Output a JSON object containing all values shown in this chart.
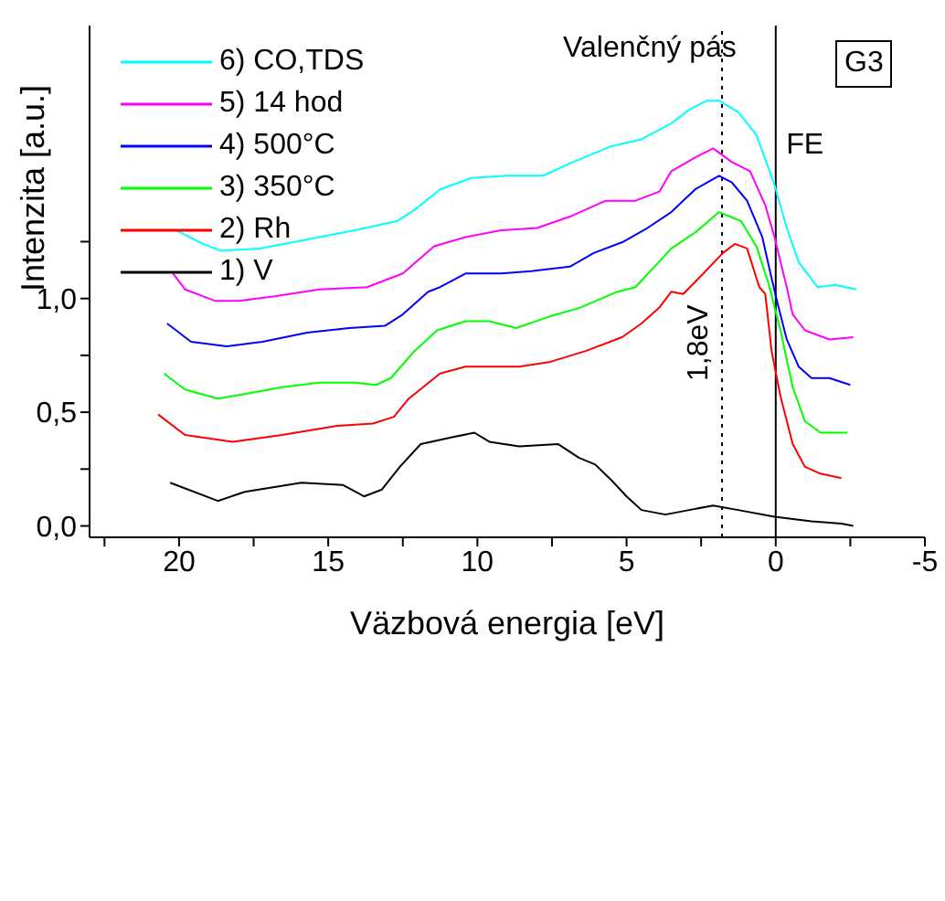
{
  "chart_data": {
    "type": "line",
    "xlabel": "Väzbová energia [eV]",
    "ylabel": "Intenzita [a.u.]",
    "xlim": [
      23,
      -5
    ],
    "xticks": [
      {
        "value": 22.5,
        "label": null
      },
      20,
      {
        "value": 17.5,
        "label": null
      },
      15,
      {
        "value": 12.5,
        "label": null
      },
      10,
      {
        "value": 7.5,
        "label": null
      },
      5,
      {
        "value": 2.5,
        "label": null
      },
      0,
      {
        "value": -2.5,
        "label": null
      },
      -5
    ],
    "ylim": [
      -0.05,
      2.2
    ],
    "yticks": [
      {
        "value": 0,
        "label": "0,0"
      },
      {
        "value": 0.25,
        "label": null
      },
      {
        "value": 0.5,
        "label": "0,5"
      },
      {
        "value": 0.75,
        "label": null
      },
      {
        "value": 1,
        "label": "1,0"
      },
      {
        "value": 1.25,
        "label": null
      }
    ],
    "legend": "top left",
    "marker": "none",
    "line_style": "solid",
    "annotations": [
      "Valenčný pás",
      "G3"
    ],
    "ref_lines": [
      {
        "axis": "x",
        "value": 1.8,
        "label": "1,8eV",
        "line_style": "dotted",
        "color": "#000000"
      },
      {
        "axis": "x",
        "value": 0,
        "label": "FE",
        "line_style": "solid",
        "color": "#000000"
      }
    ],
    "series": [
      {
        "name": "1) V",
        "color": "#000000",
        "x": [
          20.3,
          18.7,
          17.8,
          15.9,
          14.5,
          13.8,
          13.2,
          12.6,
          11.9,
          10.85,
          10.1,
          9.6,
          8.6,
          7.3,
          6.6,
          6.05,
          5.5,
          5.0,
          4.5,
          3.7,
          2.9,
          2.1,
          1.26,
          0.04,
          -1.2,
          -2.2,
          -2.6
        ],
        "values": [
          0.19,
          0.11,
          0.15,
          0.19,
          0.18,
          0.13,
          0.16,
          0.26,
          0.36,
          0.39,
          0.41,
          0.37,
          0.35,
          0.36,
          0.3,
          0.27,
          0.2,
          0.13,
          0.07,
          0.05,
          0.07,
          0.09,
          0.07,
          0.04,
          0.02,
          0.01,
          0.0
        ]
      },
      {
        "name": "2) Rh",
        "color": "#ff0000",
        "x": [
          20.7,
          19.8,
          18.2,
          16.55,
          14.7,
          13.5,
          12.8,
          12.3,
          11.25,
          10.4,
          8.6,
          7.6,
          6.35,
          5.15,
          4.5,
          3.9,
          3.5,
          3.1,
          2.5,
          1.77,
          1.37,
          0.96,
          0.55,
          0.35,
          0.14,
          -0.16,
          -0.57,
          -0.98,
          -1.5,
          -2.2
        ],
        "values": [
          0.49,
          0.4,
          0.37,
          0.4,
          0.44,
          0.45,
          0.48,
          0.56,
          0.67,
          0.7,
          0.7,
          0.72,
          0.77,
          0.83,
          0.89,
          0.96,
          1.03,
          1.02,
          1.1,
          1.2,
          1.24,
          1.22,
          1.05,
          1.02,
          0.77,
          0.57,
          0.36,
          0.26,
          0.23,
          0.21
        ]
      },
      {
        "name": "3) 350°C",
        "color": "#00ff00",
        "x": [
          20.5,
          19.8,
          18.7,
          17.8,
          16.55,
          15.3,
          14.1,
          13.4,
          12.9,
          12.1,
          11.35,
          10.4,
          9.6,
          8.7,
          7.6,
          6.55,
          5.3,
          4.7,
          3.5,
          2.7,
          1.9,
          1.16,
          0.65,
          0.25,
          -0.16,
          -0.57,
          -0.98,
          -1.5,
          -2.4
        ],
        "values": [
          0.67,
          0.6,
          0.56,
          0.58,
          0.61,
          0.63,
          0.63,
          0.62,
          0.65,
          0.77,
          0.86,
          0.9,
          0.9,
          0.87,
          0.92,
          0.96,
          1.03,
          1.05,
          1.22,
          1.29,
          1.38,
          1.34,
          1.23,
          1.07,
          0.86,
          0.61,
          0.46,
          0.41,
          0.41
        ]
      },
      {
        "name": "4) 500°C",
        "color": "#0000ff",
        "x": [
          20.4,
          19.6,
          18.4,
          17.2,
          15.7,
          14.3,
          13.1,
          12.5,
          11.65,
          11.25,
          10.4,
          9.2,
          8.2,
          6.9,
          6.1,
          5.1,
          4.3,
          3.5,
          2.7,
          1.9,
          1.47,
          0.96,
          0.45,
          0.14,
          -0.06,
          -0.37,
          -0.77,
          -1.2,
          -1.8,
          -2.5
        ],
        "values": [
          0.89,
          0.81,
          0.79,
          0.81,
          0.85,
          0.87,
          0.88,
          0.93,
          1.03,
          1.05,
          1.11,
          1.11,
          1.12,
          1.14,
          1.2,
          1.25,
          1.31,
          1.38,
          1.48,
          1.54,
          1.51,
          1.43,
          1.27,
          1.09,
          0.98,
          0.82,
          0.7,
          0.65,
          0.65,
          0.62
        ]
      },
      {
        "name": "5) 14 hod",
        "color": "#ff00ff",
        "x": [
          20.2,
          19.8,
          18.8,
          18.0,
          16.8,
          15.3,
          13.7,
          12.5,
          11.45,
          10.4,
          9.2,
          8.0,
          6.9,
          5.7,
          4.7,
          3.9,
          3.5,
          2.7,
          2.1,
          1.47,
          0.86,
          0.35,
          0.04,
          -0.37,
          -0.57,
          -0.98,
          -1.8,
          -2.6
        ],
        "values": [
          1.11,
          1.04,
          0.99,
          0.99,
          1.01,
          1.04,
          1.05,
          1.11,
          1.23,
          1.27,
          1.3,
          1.31,
          1.36,
          1.43,
          1.43,
          1.47,
          1.56,
          1.62,
          1.66,
          1.6,
          1.56,
          1.41,
          1.27,
          1.05,
          0.93,
          0.86,
          0.82,
          0.83
        ]
      },
      {
        "name": "6) CO,TDS",
        "color": "#00ffff",
        "x": [
          20.1,
          19.2,
          18.6,
          17.3,
          15.7,
          14.1,
          12.7,
          12.1,
          11.25,
          10.2,
          9.0,
          7.8,
          6.8,
          5.5,
          4.5,
          3.5,
          2.9,
          2.3,
          1.9,
          1.26,
          0.65,
          0.04,
          -0.37,
          -0.77,
          -1.4,
          -2.0,
          -2.7
        ],
        "values": [
          1.3,
          1.24,
          1.21,
          1.22,
          1.26,
          1.3,
          1.34,
          1.39,
          1.48,
          1.53,
          1.54,
          1.54,
          1.6,
          1.67,
          1.7,
          1.77,
          1.83,
          1.87,
          1.87,
          1.82,
          1.72,
          1.5,
          1.31,
          1.16,
          1.05,
          1.06,
          1.04
        ]
      }
    ]
  }
}
